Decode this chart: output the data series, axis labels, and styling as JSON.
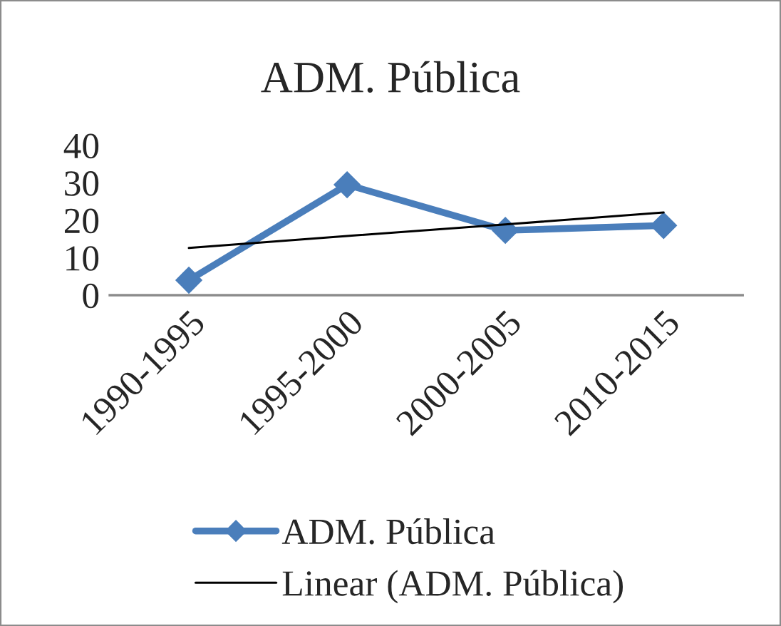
{
  "chart_data": {
    "type": "line",
    "title": "ADM. Pública",
    "categories": [
      "1990-1995",
      "1995-2000",
      "2000-2005",
      "2010-2015"
    ],
    "series": [
      {
        "name": "ADM. Pública",
        "color": "#4a7ebb",
        "values": [
          4,
          29.5,
          17.3,
          18.6
        ],
        "marker": "diamond",
        "line_style": "solid"
      },
      {
        "name": "Linear (ADM. Pública)",
        "color": "#000000",
        "values": [
          12.6,
          15.8,
          18.9,
          22.1
        ],
        "marker": "none",
        "line_style": "solid"
      }
    ],
    "ylim": [
      0,
      40
    ],
    "yticks": [
      0,
      10,
      20,
      30,
      40
    ],
    "grid": false,
    "legend": "bottom"
  }
}
